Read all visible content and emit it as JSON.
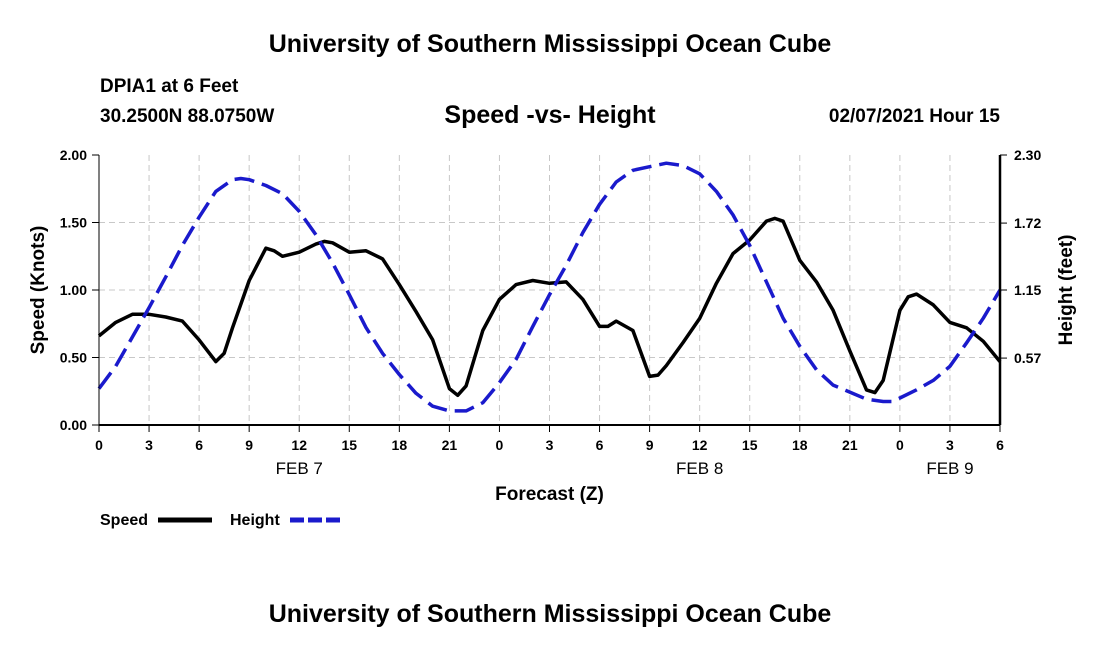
{
  "header": {
    "title": "University of Southern Mississippi Ocean Cube",
    "station": "DPIA1 at 6 Feet",
    "coordinates": "30.2500N 88.0750W",
    "subtitle": "Speed -vs- Height",
    "datetime": "02/07/2021 Hour 15"
  },
  "footer": {
    "title": "University of Southern Mississippi Ocean Cube"
  },
  "colors": {
    "speed": "#000000",
    "height": "#1a1acc",
    "grid": "#c8c8c8"
  },
  "chart_data": {
    "type": "line",
    "title": "Speed -vs- Height",
    "xlabel": "Forecast (Z)",
    "ylabel": "Speed (Knots)",
    "y2label": "Height (feet)",
    "xlim": [
      0,
      54
    ],
    "ylim": [
      0,
      2.0
    ],
    "y2lim": [
      0,
      2.3
    ],
    "grid": true,
    "x_ticks": [
      0,
      3,
      6,
      9,
      12,
      15,
      18,
      21,
      24,
      27,
      30,
      33,
      36,
      39,
      42,
      45,
      48,
      51,
      54
    ],
    "x_tick_labels": [
      "0",
      "3",
      "6",
      "9",
      "12",
      "15",
      "18",
      "21",
      "0",
      "3",
      "6",
      "9",
      "12",
      "15",
      "18",
      "21",
      "0",
      "3",
      "6"
    ],
    "date_labels": [
      {
        "x": 12,
        "label": "FEB 7"
      },
      {
        "x": 36,
        "label": "FEB 8"
      },
      {
        "x": 51,
        "label": "FEB 9"
      }
    ],
    "y_ticks": [
      0,
      0.5,
      1.0,
      1.5,
      2.0
    ],
    "y_tick_labels": [
      "0.00",
      "0.50",
      "1.00",
      "1.50",
      "2.00"
    ],
    "y2_ticks": [
      0.57,
      1.15,
      1.72,
      2.3
    ],
    "y2_tick_labels": [
      "0.57",
      "1.15",
      "1.72",
      "2.30"
    ],
    "legend_position": "bottom-left",
    "series": [
      {
        "name": "Speed",
        "axis": "left",
        "style": "solid",
        "x": [
          0,
          1,
          2,
          3,
          4,
          5,
          6,
          7,
          7.5,
          8,
          9,
          10,
          10.5,
          11,
          12,
          13,
          13.5,
          14,
          15,
          16,
          17,
          18,
          19,
          20,
          21,
          21.5,
          22,
          23,
          24,
          25,
          26,
          27,
          28,
          29,
          30,
          30.5,
          31,
          32,
          33,
          33.5,
          34,
          35,
          36,
          37,
          38,
          39,
          40,
          40.5,
          41,
          42,
          43,
          44,
          45,
          46,
          46.5,
          47,
          48,
          48.5,
          49,
          50,
          51,
          52,
          53,
          54
        ],
        "values": [
          0.66,
          0.76,
          0.82,
          0.82,
          0.8,
          0.77,
          0.63,
          0.47,
          0.53,
          0.72,
          1.07,
          1.31,
          1.29,
          1.25,
          1.28,
          1.34,
          1.36,
          1.35,
          1.28,
          1.29,
          1.23,
          1.04,
          0.84,
          0.63,
          0.27,
          0.22,
          0.29,
          0.7,
          0.93,
          1.04,
          1.07,
          1.05,
          1.06,
          0.93,
          0.73,
          0.73,
          0.77,
          0.7,
          0.36,
          0.37,
          0.44,
          0.61,
          0.79,
          1.05,
          1.27,
          1.37,
          1.51,
          1.53,
          1.51,
          1.22,
          1.06,
          0.85,
          0.55,
          0.26,
          0.24,
          0.33,
          0.85,
          0.95,
          0.97,
          0.89,
          0.76,
          0.72,
          0.62,
          0.47
        ]
      },
      {
        "name": "Height",
        "axis": "right",
        "style": "dashed",
        "x": [
          0,
          1,
          2,
          3,
          4,
          5,
          6,
          7,
          8,
          8.5,
          9,
          10,
          11,
          12,
          13,
          14,
          15,
          16,
          17,
          18,
          19,
          20,
          21,
          22,
          23,
          24,
          25,
          26,
          27,
          28,
          29,
          30,
          31,
          32,
          33,
          34,
          35,
          36,
          37,
          38,
          39,
          40,
          41,
          42,
          43,
          44,
          45,
          46,
          47,
          47.5,
          48,
          49,
          50,
          51,
          52,
          53,
          54
        ],
        "values": [
          0.31,
          0.5,
          0.75,
          1.0,
          1.26,
          1.53,
          1.77,
          1.99,
          2.09,
          2.1,
          2.09,
          2.04,
          1.97,
          1.82,
          1.62,
          1.38,
          1.11,
          0.83,
          0.61,
          0.43,
          0.27,
          0.16,
          0.12,
          0.12,
          0.19,
          0.36,
          0.56,
          0.84,
          1.11,
          1.36,
          1.64,
          1.88,
          2.07,
          2.17,
          2.2,
          2.23,
          2.21,
          2.14,
          1.99,
          1.79,
          1.53,
          1.22,
          0.91,
          0.67,
          0.47,
          0.34,
          0.28,
          0.22,
          0.2,
          0.2,
          0.23,
          0.3,
          0.38,
          0.5,
          0.7,
          0.91,
          1.15
        ]
      }
    ]
  }
}
